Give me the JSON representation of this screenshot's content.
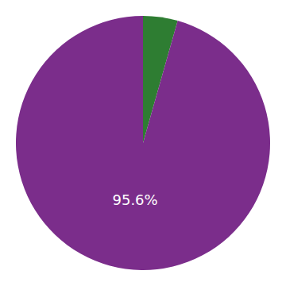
{
  "chart_data": {
    "type": "pie",
    "values": [
      4.4,
      95.6
    ],
    "colors": [
      "#2E7D32",
      "#7B2D8B"
    ],
    "value_labels": [
      null,
      "95.6%"
    ]
  }
}
